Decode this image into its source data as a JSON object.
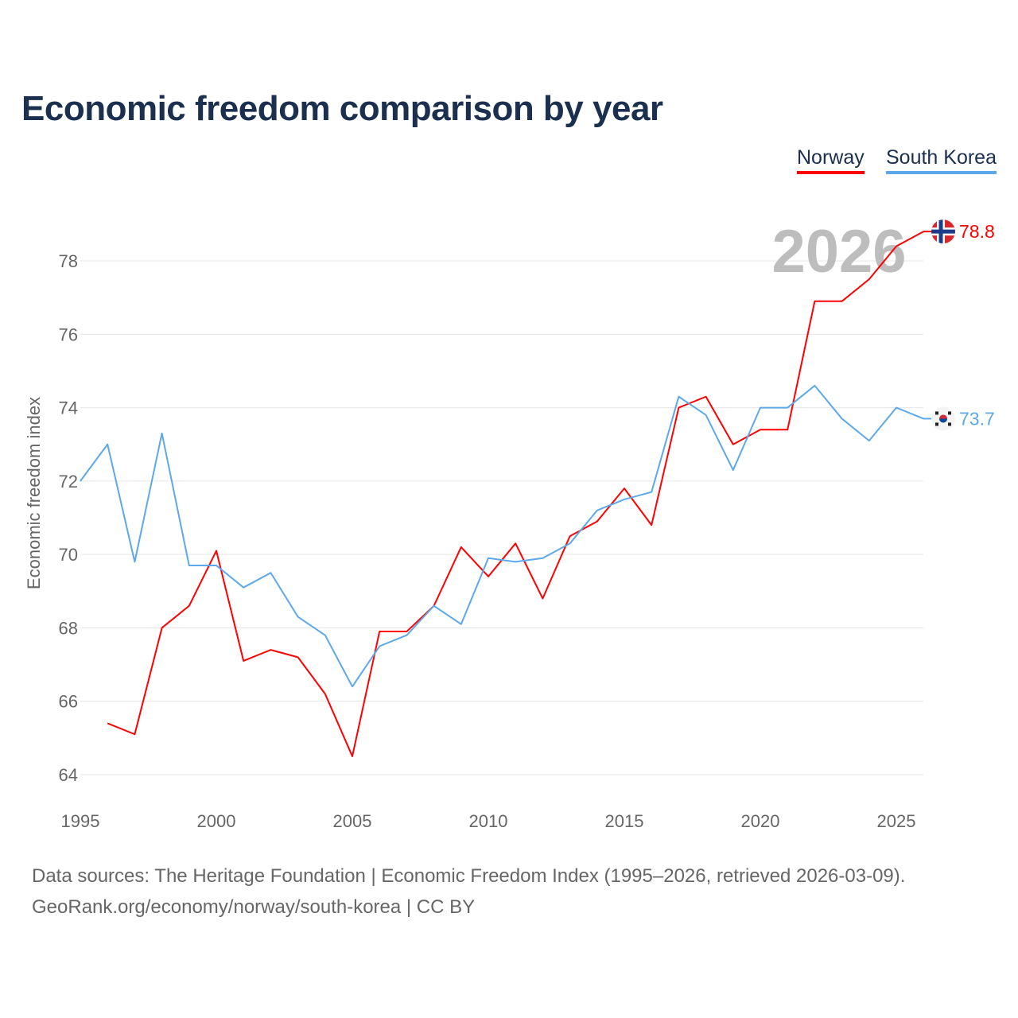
{
  "title": "Economic freedom comparison by year",
  "legend": [
    {
      "label": "Norway",
      "color": "#ff0000"
    },
    {
      "label": "South Korea",
      "color": "#5ca8ea"
    }
  ],
  "year_watermark": "2026",
  "footer": {
    "line1": "Data sources: The Heritage Foundation | Economic Freedom Index (1995–2026, retrieved 2026-03-09).",
    "line2": "GeoRank.org/economy/norway/south-korea | CC BY"
  },
  "chart_data": {
    "type": "line",
    "title": "Economic freedom comparison by year",
    "xlabel": "",
    "ylabel": "Economic freedom index",
    "xlim": [
      1995,
      2026
    ],
    "ylim": [
      63.5,
      79.5
    ],
    "xticks": [
      1995,
      2000,
      2005,
      2010,
      2015,
      2020,
      2025
    ],
    "yticks": [
      64,
      66,
      68,
      70,
      72,
      74,
      76,
      78
    ],
    "grid": true,
    "legend_placement": "top-right",
    "series": [
      {
        "name": "Norway",
        "color": "#ff0000",
        "end_label": "78.8",
        "x": [
          1996,
          1997,
          1998,
          1999,
          2000,
          2001,
          2002,
          2003,
          2004,
          2005,
          2006,
          2007,
          2008,
          2009,
          2010,
          2011,
          2012,
          2013,
          2014,
          2015,
          2016,
          2017,
          2018,
          2019,
          2020,
          2021,
          2022,
          2023,
          2024,
          2025,
          2026
        ],
        "values": [
          65.4,
          65.1,
          68.0,
          68.6,
          70.1,
          67.1,
          67.4,
          67.2,
          66.2,
          64.5,
          67.9,
          67.9,
          68.6,
          70.2,
          69.4,
          70.3,
          68.8,
          70.5,
          70.9,
          71.8,
          70.8,
          74.0,
          74.3,
          73.0,
          73.4,
          73.4,
          76.9,
          76.9,
          77.5,
          78.4,
          78.8
        ]
      },
      {
        "name": "South Korea",
        "color": "#5ca8ea",
        "end_label": "73.7",
        "x": [
          1995,
          1996,
          1997,
          1998,
          1999,
          2000,
          2001,
          2002,
          2003,
          2004,
          2005,
          2006,
          2007,
          2008,
          2009,
          2010,
          2011,
          2012,
          2013,
          2014,
          2015,
          2016,
          2017,
          2018,
          2019,
          2020,
          2021,
          2022,
          2023,
          2024,
          2025,
          2026
        ],
        "values": [
          72.0,
          73.0,
          69.8,
          73.3,
          69.7,
          69.7,
          69.1,
          69.5,
          68.3,
          67.8,
          66.4,
          67.5,
          67.8,
          68.6,
          68.1,
          69.9,
          69.8,
          69.9,
          70.3,
          71.2,
          71.5,
          71.7,
          74.3,
          73.8,
          72.3,
          74.0,
          74.0,
          74.6,
          73.7,
          73.1,
          74.0,
          73.7
        ]
      }
    ]
  }
}
